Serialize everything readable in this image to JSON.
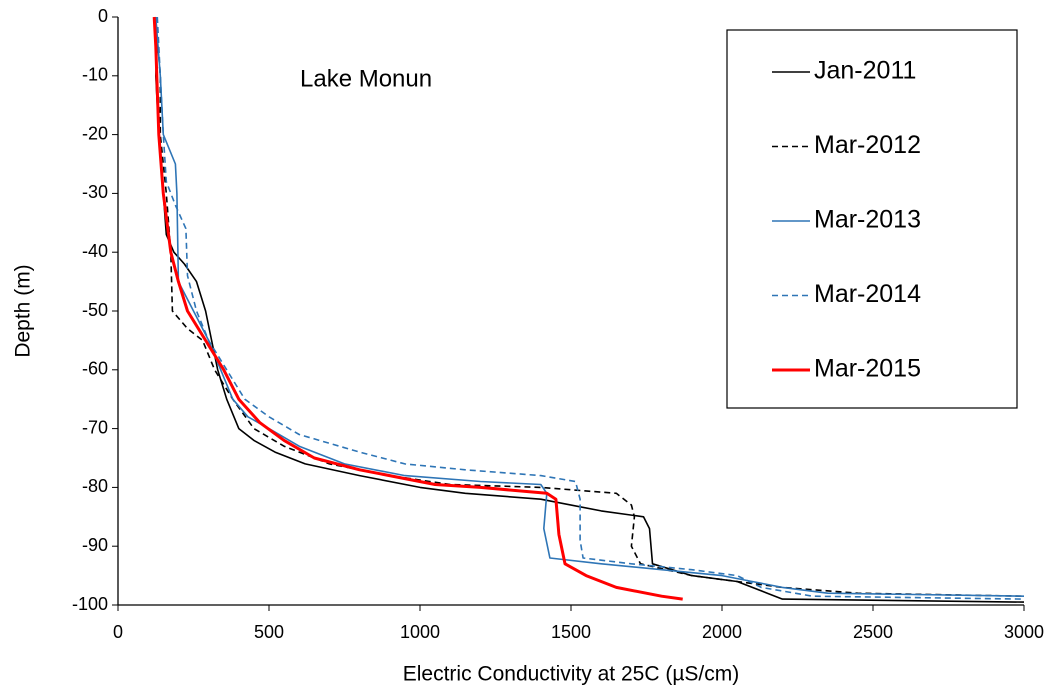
{
  "chart_data": {
    "type": "line",
    "annotation": "Lake Monun",
    "x_label": "Electric Conductivity at 25C (µS/cm)",
    "y_label": "Depth (m)",
    "xlim": [
      0,
      3000
    ],
    "xticks": [
      0,
      500,
      1000,
      1500,
      2000,
      2500,
      3000
    ],
    "ylim": [
      -100,
      0
    ],
    "yticks": [
      0,
      -10,
      -20,
      -30,
      -40,
      -50,
      -60,
      -70,
      -80,
      -90,
      -100
    ],
    "grid": false,
    "legend": "upper right",
    "series": [
      {
        "name": "Jan-2011",
        "color": "#000000",
        "dashed": false,
        "line_width": 1.6,
        "x": [
          125,
          130,
          125,
          135,
          150,
          160,
          185,
          220,
          260,
          290,
          310,
          330,
          360,
          400,
          450,
          520,
          620,
          800,
          1000,
          1150,
          1400,
          1600,
          1740,
          1760,
          1770,
          1900,
          2050,
          2150,
          2200,
          3000
        ],
        "values": [
          0,
          -5,
          -10,
          -20,
          -30,
          -37,
          -40,
          -42,
          -45,
          -50,
          -55,
          -60,
          -65,
          -70,
          -72,
          -74,
          -76,
          -78,
          -80,
          -81,
          -82,
          -84,
          -85,
          -87,
          -93,
          -95,
          -96,
          -98,
          -99,
          -99.5
        ]
      },
      {
        "name": "Mar-2012",
        "color": "#000000",
        "dashed": true,
        "line_width": 1.6,
        "x": [
          125,
          140,
          140,
          160,
          175,
          180,
          230,
          280,
          320,
          380,
          450,
          550,
          700,
          900,
          1100,
          1400,
          1650,
          1700,
          1710,
          1700,
          1730,
          1900,
          2200,
          2450,
          3000
        ],
        "values": [
          0,
          -10,
          -20,
          -30,
          -40,
          -50,
          -53,
          -55,
          -60,
          -65,
          -70,
          -73,
          -76,
          -78,
          -79.5,
          -80,
          -81,
          -83,
          -85,
          -90,
          -93,
          -95,
          -97,
          -98,
          -98.5
        ]
      },
      {
        "name": "Mar-2013",
        "color": "#2e75b6",
        "dashed": false,
        "line_width": 1.6,
        "x": [
          125,
          140,
          150,
          190,
          195,
          200,
          250,
          300,
          340,
          380,
          430,
          500,
          600,
          750,
          950,
          1200,
          1400,
          1420,
          1410,
          1430,
          1600,
          1800,
          2000,
          2100,
          2200,
          2350,
          3000
        ],
        "values": [
          0,
          -10,
          -20,
          -25,
          -30,
          -45,
          -50,
          -55,
          -60,
          -65,
          -68,
          -70,
          -73,
          -76,
          -78,
          -79,
          -79.5,
          -81,
          -87,
          -92,
          -93,
          -94,
          -95,
          -96,
          -97,
          -98,
          -98.5
        ]
      },
      {
        "name": "Mar-2014",
        "color": "#2e75b6",
        "dashed": true,
        "line_width": 1.6,
        "x": [
          130,
          140,
          150,
          160,
          190,
          225,
          230,
          260,
          300,
          360,
          420,
          500,
          600,
          800,
          950,
          1150,
          1400,
          1515,
          1530,
          1530,
          1540,
          1700,
          1900,
          2050,
          2130,
          2300,
          3000
        ],
        "values": [
          0,
          -10,
          -20,
          -28,
          -32,
          -36,
          -44,
          -50,
          -55,
          -60,
          -65,
          -68,
          -71,
          -74,
          -76,
          -77,
          -78,
          -79,
          -82,
          -89,
          -92,
          -93,
          -94,
          -95,
          -97,
          -98.5,
          -99
        ]
      },
      {
        "name": "Mar-2015",
        "color": "#ff0000",
        "dashed": false,
        "line_width": 3,
        "x": [
          120,
          125,
          135,
          150,
          175,
          200,
          230,
          290,
          350,
          400,
          470,
          550,
          650,
          800,
          950,
          1050,
          1200,
          1420,
          1450,
          1460,
          1480,
          1550,
          1650,
          1800,
          1870
        ],
        "values": [
          0,
          -5,
          -20,
          -30,
          -40,
          -45,
          -50,
          -55,
          -60,
          -65,
          -69,
          -72,
          -75,
          -77,
          -78.5,
          -79.5,
          -80,
          -81,
          -82,
          -88,
          -93,
          -95,
          -97,
          -98.5,
          -99
        ]
      }
    ]
  }
}
